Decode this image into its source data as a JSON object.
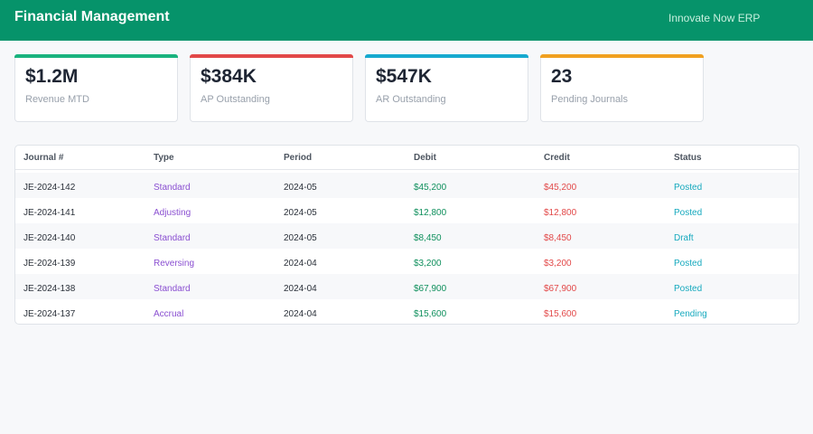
{
  "header": {
    "title": "Financial Management",
    "brand": "Innovate Now ERP"
  },
  "kpis": [
    {
      "value": "$1.2M",
      "label": "Revenue MTD",
      "color": "#19b37e"
    },
    {
      "value": "$384K",
      "label": "AP Outstanding",
      "color": "#e24848"
    },
    {
      "value": "$547K",
      "label": "AR Outstanding",
      "color": "#16a9cf"
    },
    {
      "value": "23",
      "label": "Pending Journals",
      "color": "#f0a020"
    }
  ],
  "table": {
    "columns": [
      "Journal #",
      "Type",
      "Period",
      "Debit",
      "Credit",
      "Status"
    ],
    "rows": [
      {
        "journal": "JE-2024-142",
        "type": "Standard",
        "period": "2024-05",
        "debit": "$45,200",
        "credit": "$45,200",
        "status": "Posted"
      },
      {
        "journal": "JE-2024-141",
        "type": "Adjusting",
        "period": "2024-05",
        "debit": "$12,800",
        "credit": "$12,800",
        "status": "Posted"
      },
      {
        "journal": "JE-2024-140",
        "type": "Standard",
        "period": "2024-05",
        "debit": "$8,450",
        "credit": "$8,450",
        "status": "Draft"
      },
      {
        "journal": "JE-2024-139",
        "type": "Reversing",
        "period": "2024-04",
        "debit": "$3,200",
        "credit": "$3,200",
        "status": "Posted"
      },
      {
        "journal": "JE-2024-138",
        "type": "Standard",
        "period": "2024-04",
        "debit": "$67,900",
        "credit": "$67,900",
        "status": "Posted"
      },
      {
        "journal": "JE-2024-137",
        "type": "Accrual",
        "period": "2024-04",
        "debit": "$15,600",
        "credit": "$15,600",
        "status": "Pending"
      }
    ]
  },
  "colors": {
    "header_bg": "#06936a",
    "type_text": "#8a4fd1",
    "debit_text": "#0e8f5c",
    "credit_text": "#e24848",
    "status_text": "#16a9be"
  }
}
